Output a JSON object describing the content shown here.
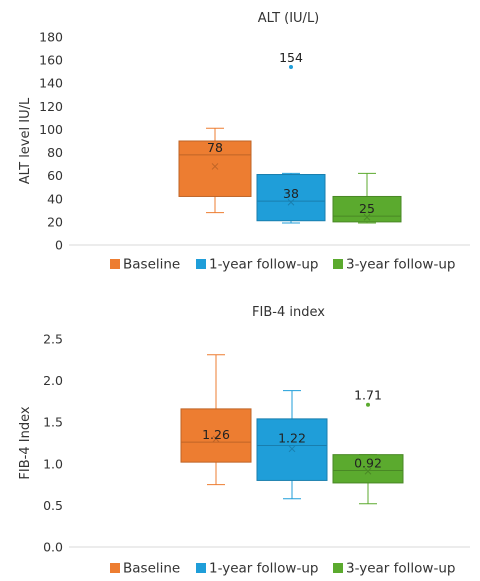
{
  "chart_data": [
    {
      "type": "box",
      "title": "ALT (IU/L)",
      "xlabel": "",
      "ylabel": "ALT level IU/L",
      "ylim": [
        0,
        180
      ],
      "yticks": [
        0,
        20,
        40,
        60,
        80,
        100,
        120,
        140,
        160,
        180
      ],
      "ytick_labels": [
        "0",
        "20",
        "40",
        "60",
        "80",
        "100",
        "120",
        "140",
        "160",
        "180"
      ],
      "grid": false,
      "legend_position": "bottom",
      "series": [
        {
          "name": "Baseline",
          "color": "#ED7D31",
          "min": 28,
          "q1": 42,
          "median": 78,
          "q3": 90,
          "max": 101,
          "mean": 68,
          "outliers": [],
          "label": "78"
        },
        {
          "name": "1-year follow-up",
          "color": "#1F9ED9",
          "min": 19,
          "q1": 21,
          "median": 38,
          "q3": 61,
          "max": 62,
          "mean": 37,
          "outliers": [
            154
          ],
          "outlier_labels": [
            "154"
          ],
          "label": "38"
        },
        {
          "name": "3-year follow-up",
          "color": "#5BAA2E",
          "min": 19,
          "q1": 20,
          "median": 25,
          "q3": 42,
          "max": 62,
          "mean": 24,
          "outliers": [],
          "label": "25"
        }
      ]
    },
    {
      "type": "box",
      "title": "FIB-4 index",
      "xlabel": "",
      "ylabel": "FIB-4 Index",
      "ylim": [
        0,
        2.5
      ],
      "yticks": [
        0,
        0.5,
        1.0,
        1.5,
        2.0,
        2.5
      ],
      "ytick_labels": [
        "0.0",
        "0.5",
        "1.0",
        "1.5",
        "2.0",
        "2.5"
      ],
      "grid": false,
      "legend_position": "bottom",
      "series": [
        {
          "name": "Baseline",
          "color": "#ED7D31",
          "min": 0.75,
          "q1": 1.02,
          "median": 1.26,
          "q3": 1.66,
          "max": 2.31,
          "mean": 1.3,
          "outliers": [],
          "label": "1.26"
        },
        {
          "name": "1-year follow-up",
          "color": "#1F9ED9",
          "min": 0.58,
          "q1": 0.8,
          "median": 1.22,
          "q3": 1.54,
          "max": 1.88,
          "mean": 1.18,
          "outliers": [],
          "label": "1.22"
        },
        {
          "name": "3-year follow-up",
          "color": "#5BAA2E",
          "min": 0.52,
          "q1": 0.77,
          "median": 0.92,
          "q3": 1.11,
          "max": 1.11,
          "mean": 0.91,
          "outliers": [
            1.71
          ],
          "outlier_labels": [
            "1.71"
          ],
          "label": "0.92"
        }
      ]
    }
  ]
}
